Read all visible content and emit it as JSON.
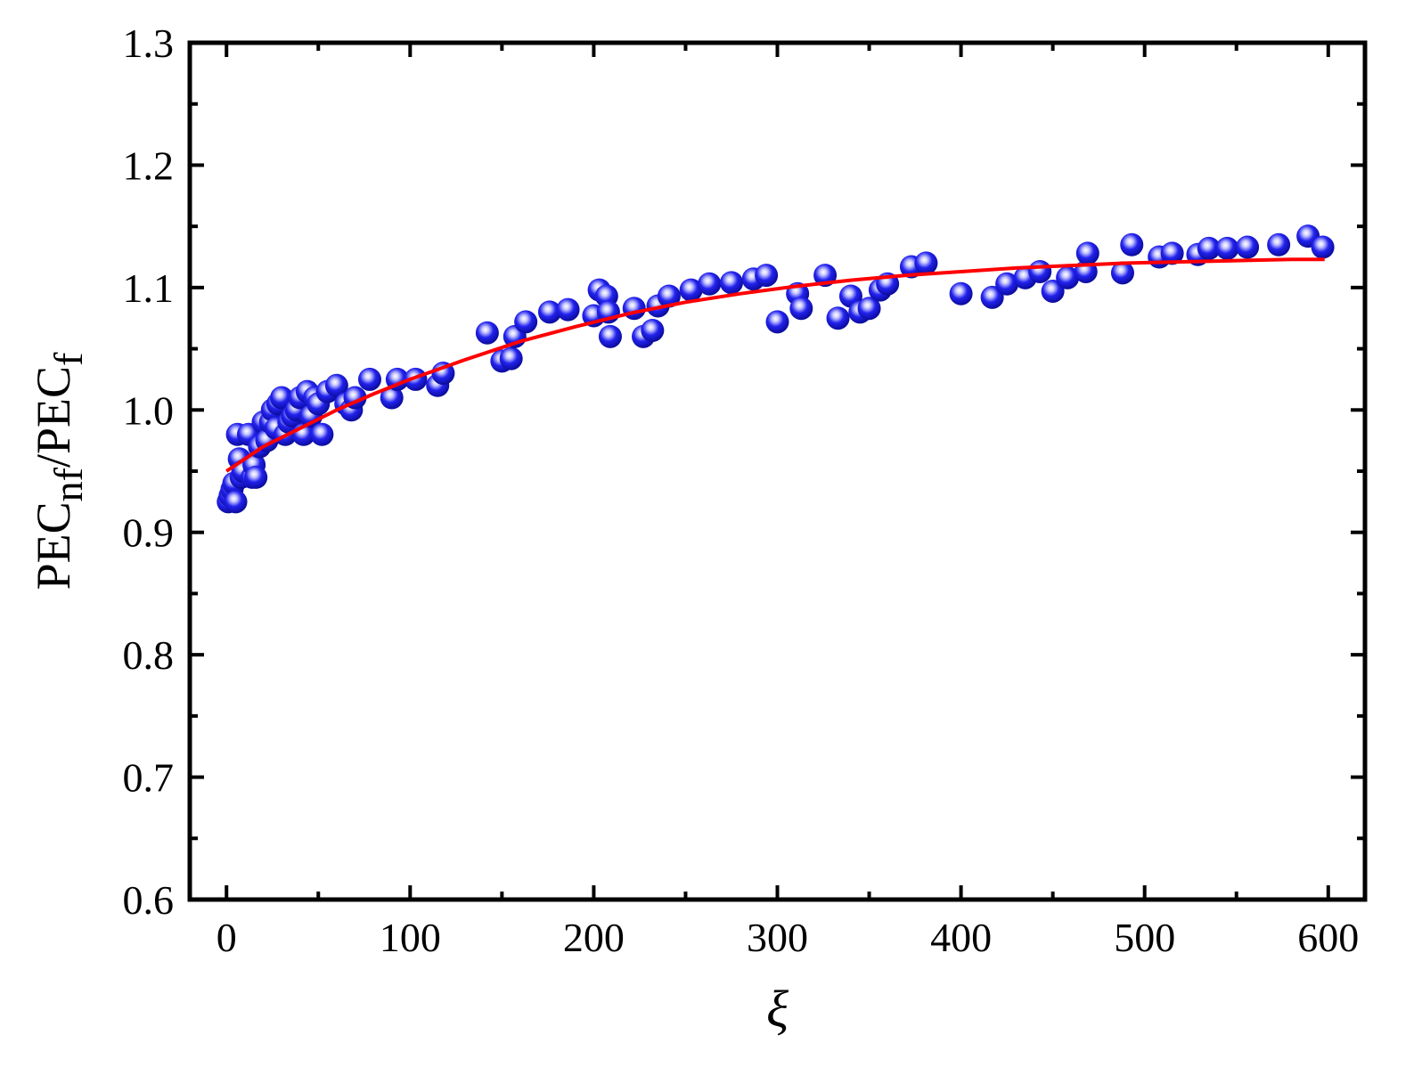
{
  "chart_data": {
    "type": "scatter",
    "xlabel": "ξ",
    "ylabel": {
      "parts": [
        {
          "text": "PEC",
          "sub": false
        },
        {
          "text": "nf",
          "sub": true
        },
        {
          "text": "/PEC",
          "sub": false
        },
        {
          "text": "f",
          "sub": true
        }
      ]
    },
    "xlim": [
      -20,
      620
    ],
    "ylim": [
      0.6,
      1.3
    ],
    "xticks": [
      0,
      100,
      200,
      300,
      400,
      500,
      600
    ],
    "xtick_labels": [
      "0",
      "100",
      "200",
      "300",
      "400",
      "500",
      "600"
    ],
    "yticks": [
      0.6,
      0.7,
      0.8,
      0.9,
      1.0,
      1.1,
      1.2,
      1.3
    ],
    "ytick_labels": [
      "0.6",
      "0.7",
      "0.8",
      "0.9",
      "1.0",
      "1.1",
      "1.2",
      "1.3"
    ],
    "grid": false,
    "colors": {
      "marker": "#1a1aff",
      "fit": "#ff0000",
      "axis": "#000000"
    },
    "series": [
      {
        "kind": "markers",
        "points": [
          [
            1,
            0.925
          ],
          [
            2,
            0.93
          ],
          [
            3,
            0.935
          ],
          [
            4,
            0.94
          ],
          [
            5,
            0.925
          ],
          [
            6,
            0.98
          ],
          [
            7,
            0.96
          ],
          [
            8,
            0.945
          ],
          [
            9,
            0.95
          ],
          [
            12,
            0.98
          ],
          [
            14,
            0.945
          ],
          [
            15,
            0.955
          ],
          [
            16,
            0.945
          ],
          [
            18,
            0.97
          ],
          [
            20,
            0.99
          ],
          [
            22,
            0.975
          ],
          [
            24,
            0.99
          ],
          [
            25,
            1.0
          ],
          [
            27,
            0.985
          ],
          [
            28,
            1.005
          ],
          [
            30,
            1.01
          ],
          [
            32,
            0.98
          ],
          [
            34,
            0.99
          ],
          [
            36,
            0.995
          ],
          [
            38,
            1.0
          ],
          [
            40,
            1.01
          ],
          [
            42,
            0.98
          ],
          [
            44,
            1.015
          ],
          [
            46,
            0.995
          ],
          [
            48,
            1.01
          ],
          [
            50,
            1.005
          ],
          [
            52,
            0.98
          ],
          [
            55,
            1.015
          ],
          [
            60,
            1.02
          ],
          [
            65,
            1.005
          ],
          [
            68,
            1.0
          ],
          [
            70,
            1.01
          ],
          [
            78,
            1.025
          ],
          [
            90,
            1.01
          ],
          [
            93,
            1.025
          ],
          [
            103,
            1.025
          ],
          [
            115,
            1.02
          ],
          [
            118,
            1.03
          ],
          [
            142,
            1.063
          ],
          [
            150,
            1.04
          ],
          [
            155,
            1.042
          ],
          [
            157,
            1.06
          ],
          [
            163,
            1.072
          ],
          [
            176,
            1.08
          ],
          [
            186,
            1.082
          ],
          [
            200,
            1.077
          ],
          [
            203,
            1.098
          ],
          [
            207,
            1.093
          ],
          [
            208,
            1.08
          ],
          [
            209,
            1.06
          ],
          [
            222,
            1.083
          ],
          [
            227,
            1.06
          ],
          [
            232,
            1.065
          ],
          [
            235,
            1.085
          ],
          [
            241,
            1.093
          ],
          [
            253,
            1.098
          ],
          [
            263,
            1.103
          ],
          [
            275,
            1.104
          ],
          [
            287,
            1.107
          ],
          [
            294,
            1.11
          ],
          [
            300,
            1.072
          ],
          [
            311,
            1.095
          ],
          [
            313,
            1.083
          ],
          [
            326,
            1.11
          ],
          [
            333,
            1.075
          ],
          [
            340,
            1.093
          ],
          [
            345,
            1.08
          ],
          [
            350,
            1.083
          ],
          [
            356,
            1.098
          ],
          [
            360,
            1.103
          ],
          [
            373,
            1.117
          ],
          [
            381,
            1.12
          ],
          [
            400,
            1.095
          ],
          [
            417,
            1.092
          ],
          [
            425,
            1.103
          ],
          [
            435,
            1.108
          ],
          [
            443,
            1.113
          ],
          [
            450,
            1.097
          ],
          [
            458,
            1.108
          ],
          [
            468,
            1.113
          ],
          [
            469,
            1.128
          ],
          [
            488,
            1.112
          ],
          [
            493,
            1.135
          ],
          [
            508,
            1.125
          ],
          [
            515,
            1.128
          ],
          [
            529,
            1.127
          ],
          [
            535,
            1.132
          ],
          [
            545,
            1.132
          ],
          [
            556,
            1.133
          ],
          [
            573,
            1.135
          ],
          [
            589,
            1.142
          ],
          [
            597,
            1.133
          ]
        ]
      },
      {
        "kind": "fit-line",
        "points": [
          [
            0,
            0.95
          ],
          [
            20,
            0.97
          ],
          [
            40,
            0.985
          ],
          [
            60,
            1.0
          ],
          [
            80,
            1.013
          ],
          [
            100,
            1.025
          ],
          [
            130,
            1.041
          ],
          [
            160,
            1.056
          ],
          [
            190,
            1.068
          ],
          [
            220,
            1.079
          ],
          [
            250,
            1.088
          ],
          [
            280,
            1.095
          ],
          [
            310,
            1.101
          ],
          [
            340,
            1.106
          ],
          [
            370,
            1.11
          ],
          [
            400,
            1.113
          ],
          [
            430,
            1.116
          ],
          [
            460,
            1.118
          ],
          [
            490,
            1.12
          ],
          [
            520,
            1.121
          ],
          [
            550,
            1.122
          ],
          [
            580,
            1.123
          ],
          [
            598,
            1.123
          ]
        ]
      }
    ]
  }
}
